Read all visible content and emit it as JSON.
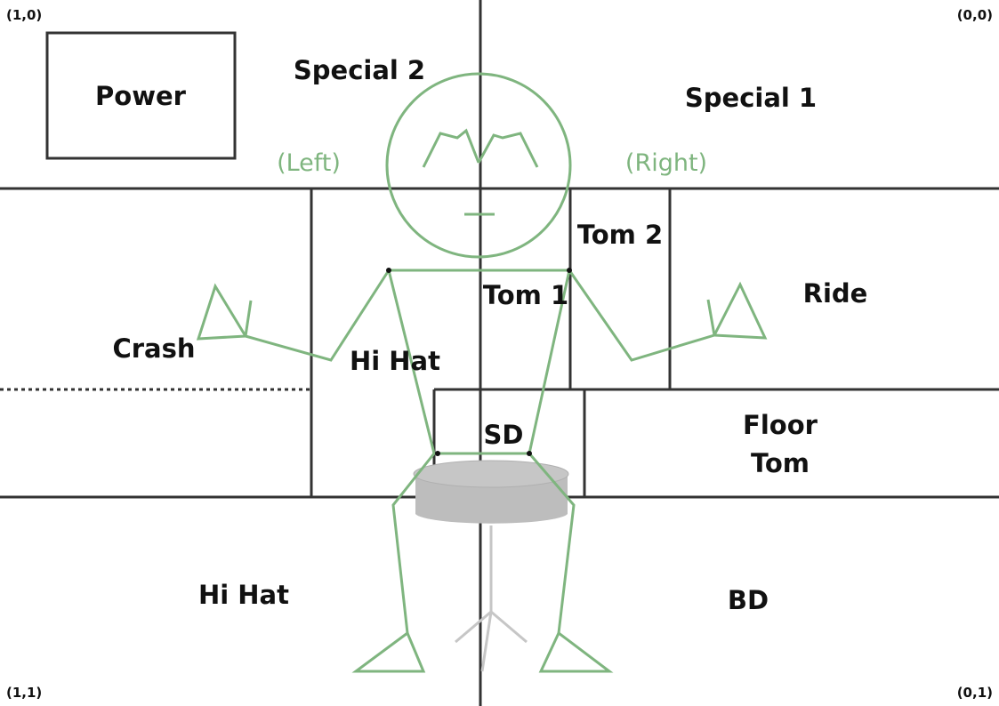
{
  "corners": {
    "top_left": "(1,0)",
    "top_right": "(0,0)",
    "bottom_left": "(1,1)",
    "bottom_right": "(0,1)"
  },
  "zones": {
    "power": "Power",
    "special_2": "Special 2",
    "special_1": "Special 1",
    "tom_2": "Tom 2",
    "tom_1": "Tom 1",
    "ride": "Ride",
    "crash": "Crash",
    "hi_hat_upper": "Hi Hat",
    "sd": "SD",
    "floor_tom_line1": "Floor",
    "floor_tom_line2": "Tom",
    "hi_hat_lower": "Hi Hat",
    "bd": "BD"
  },
  "sides": {
    "left": "(Left)",
    "right": "(Right)"
  },
  "colors": {
    "lines": "#333333",
    "figure": "#7fb57f",
    "drum": "#bdbdbd",
    "text": "#111111"
  }
}
